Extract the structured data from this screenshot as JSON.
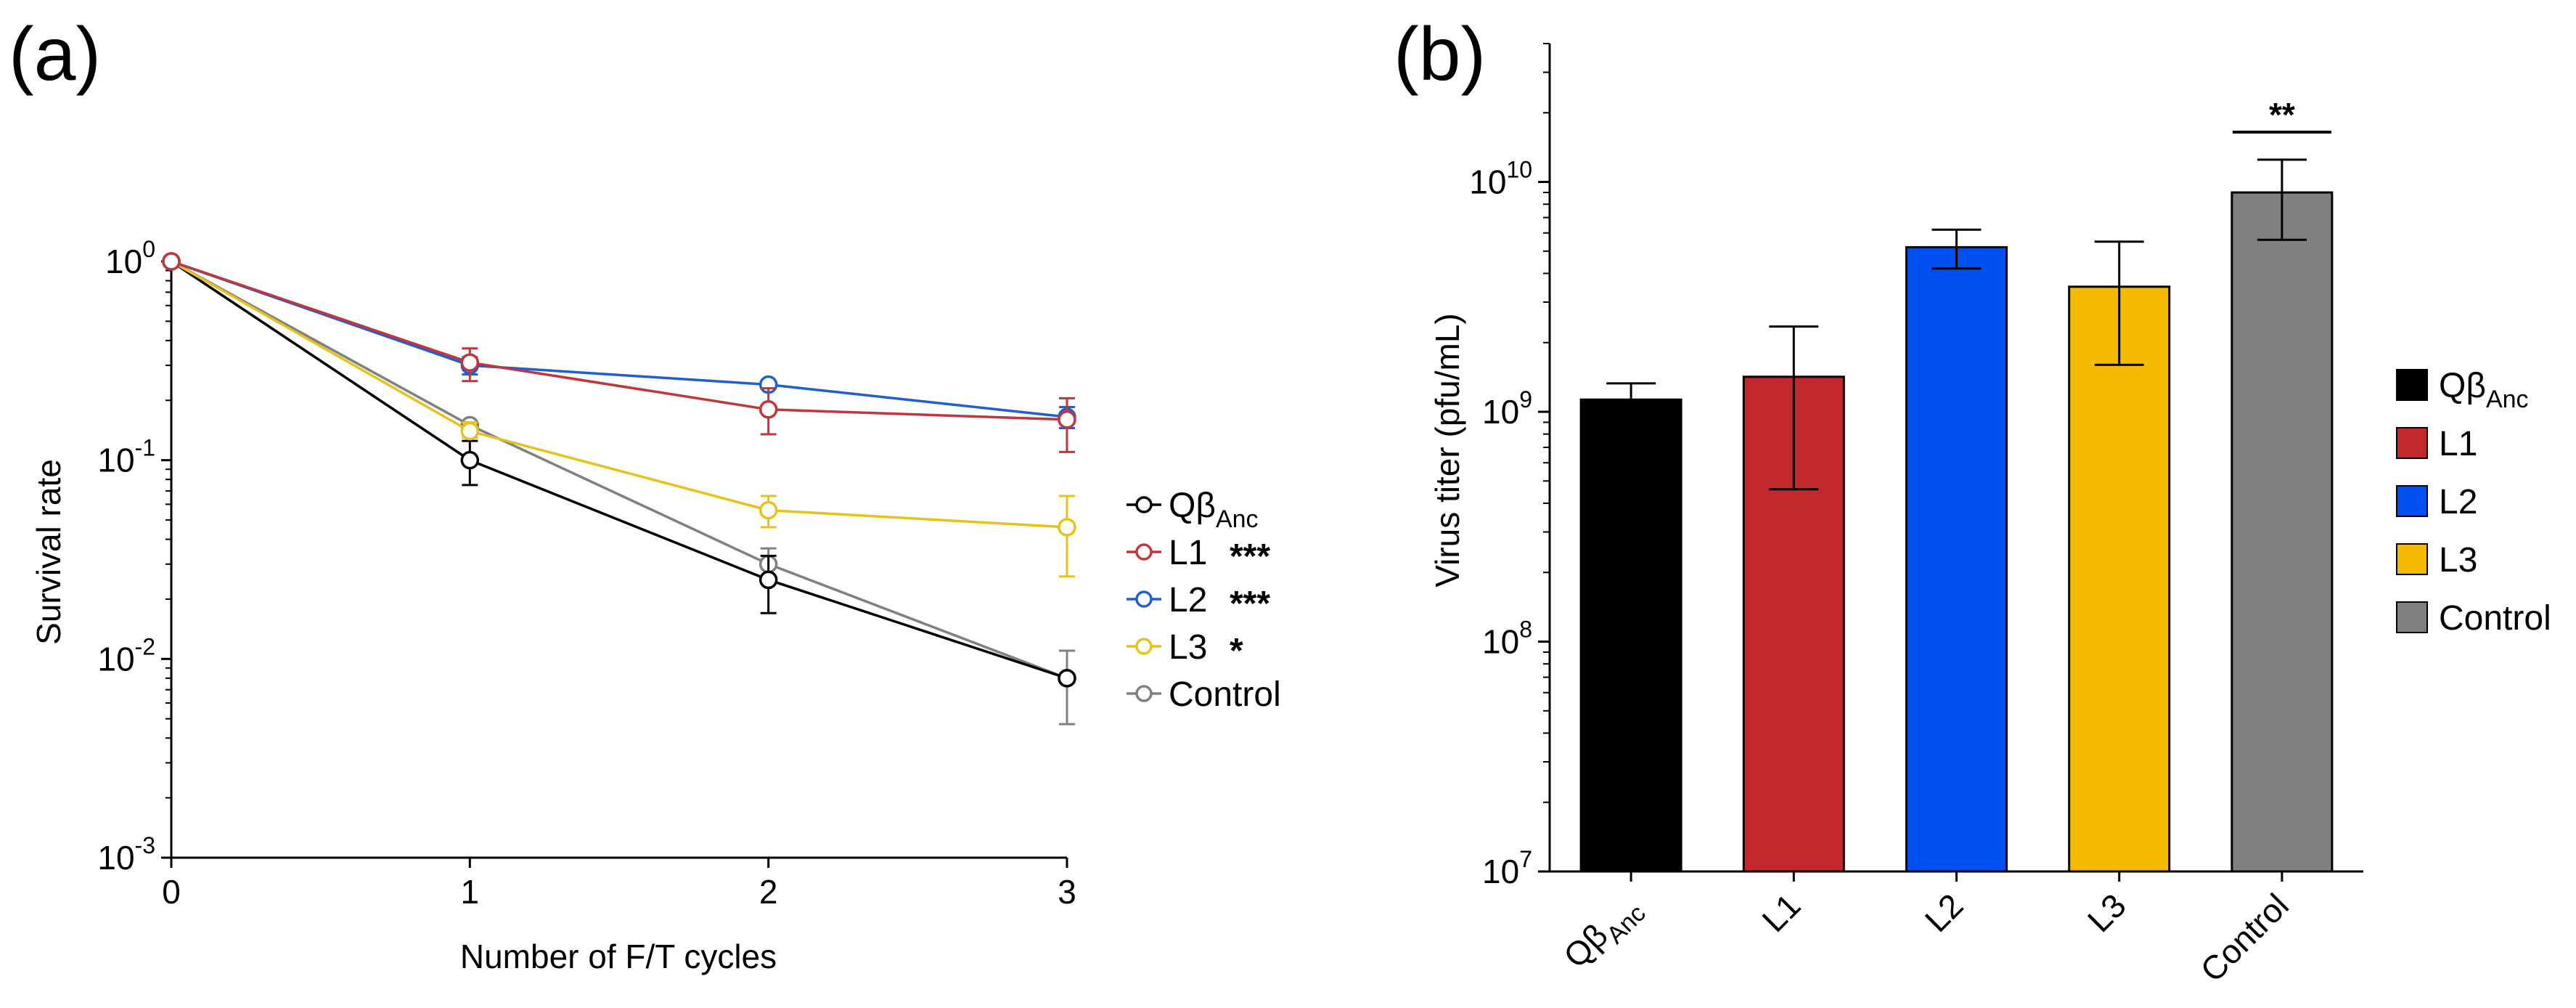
{
  "chart_data": [
    {
      "type": "line",
      "panel_label": "(a)",
      "xlabel": "Number of F/T cycles",
      "ylabel": "Survival rate",
      "yscale": "log",
      "ylim": [
        0.001,
        1
      ],
      "xlim": [
        0,
        3
      ],
      "x": [
        0,
        1,
        2,
        3
      ],
      "x_ticks": [
        "0",
        "1",
        "2",
        "3"
      ],
      "y_ticks": [
        {
          "base": "10",
          "exp": "0",
          "value": 1
        },
        {
          "base": "10",
          "exp": "-1",
          "value": 0.1
        },
        {
          "base": "10",
          "exp": "-2",
          "value": 0.01
        },
        {
          "base": "10",
          "exp": "-3",
          "value": 0.001
        }
      ],
      "legend_position": "right",
      "series": [
        {
          "name": "Control",
          "label_main": "Control",
          "label_sub": "",
          "stars": "",
          "color": "#808080",
          "values": [
            1,
            0.15,
            0.03,
            0.008
          ],
          "err_low": [
            1,
            0.15,
            0.03,
            0.0047
          ],
          "err_high": [
            1,
            0.15,
            0.036,
            0.011
          ]
        },
        {
          "name": "Qβ_Anc",
          "label_main": "Qβ",
          "label_sub": "Anc",
          "stars": "",
          "color": "#000000",
          "values": [
            1,
            0.1,
            0.025,
            0.008
          ],
          "err_low": [
            1,
            0.075,
            0.017,
            0.008
          ],
          "err_high": [
            1,
            0.125,
            0.033,
            0.008
          ]
        },
        {
          "name": "L3",
          "label_main": "L3",
          "label_sub": "",
          "stars": "*",
          "color": "#e8c21b",
          "values": [
            1,
            0.14,
            0.056,
            0.046
          ],
          "err_low": [
            1,
            0.13,
            0.046,
            0.026
          ],
          "err_high": [
            1,
            0.155,
            0.066,
            0.066
          ]
        },
        {
          "name": "L2",
          "label_main": "L2",
          "label_sub": "",
          "stars": "***",
          "color": "#1f5fcf",
          "values": [
            1,
            0.3,
            0.24,
            0.165
          ],
          "err_low": [
            1,
            0.27,
            0.24,
            0.145
          ],
          "err_high": [
            1,
            0.33,
            0.24,
            0.185
          ]
        },
        {
          "name": "L1",
          "label_main": "L1",
          "label_sub": "",
          "stars": "***",
          "color": "#c0363c",
          "values": [
            1,
            0.31,
            0.18,
            0.16
          ],
          "err_low": [
            1,
            0.25,
            0.135,
            0.11
          ],
          "err_high": [
            1,
            0.365,
            0.23,
            0.205
          ]
        }
      ],
      "legend_order": [
        "Qβ_Anc",
        "L1",
        "L2",
        "L3",
        "Control"
      ]
    },
    {
      "type": "bar",
      "panel_label": "(b)",
      "ylabel": "Virus titer (pfu/mL)",
      "yscale": "log",
      "ylim": [
        10000000,
        40000000000
      ],
      "y_ticks": [
        {
          "base": "10",
          "exp": "10",
          "value": 10000000000
        },
        {
          "base": "10",
          "exp": "9",
          "value": 1000000000
        },
        {
          "base": "10",
          "exp": "8",
          "value": 100000000
        },
        {
          "base": "10",
          "exp": "7",
          "value": 10000000
        }
      ],
      "categories": [
        {
          "name": "Qβ_Anc",
          "label_main": "Qβ",
          "label_sub": "Anc"
        },
        {
          "name": "L1",
          "label_main": "L1",
          "label_sub": ""
        },
        {
          "name": "L2",
          "label_main": "L2",
          "label_sub": ""
        },
        {
          "name": "L3",
          "label_main": "L3",
          "label_sub": ""
        },
        {
          "name": "Control",
          "label_main": "Control",
          "label_sub": ""
        }
      ],
      "values": [
        1130000000,
        1420000000,
        5200000000,
        3500000000,
        9000000000
      ],
      "err_low": [
        950000000,
        460000000,
        4200000000,
        1600000000,
        5600000000
      ],
      "err_high": [
        1330000000,
        2350000000,
        6200000000,
        5500000000,
        12500000000
      ],
      "colors": [
        "#000000",
        "#c2282d",
        "#0050ef",
        "#f5bb00",
        "#808080"
      ],
      "significance": {
        "category": "Control",
        "label": "**"
      },
      "legend_position": "right"
    }
  ]
}
